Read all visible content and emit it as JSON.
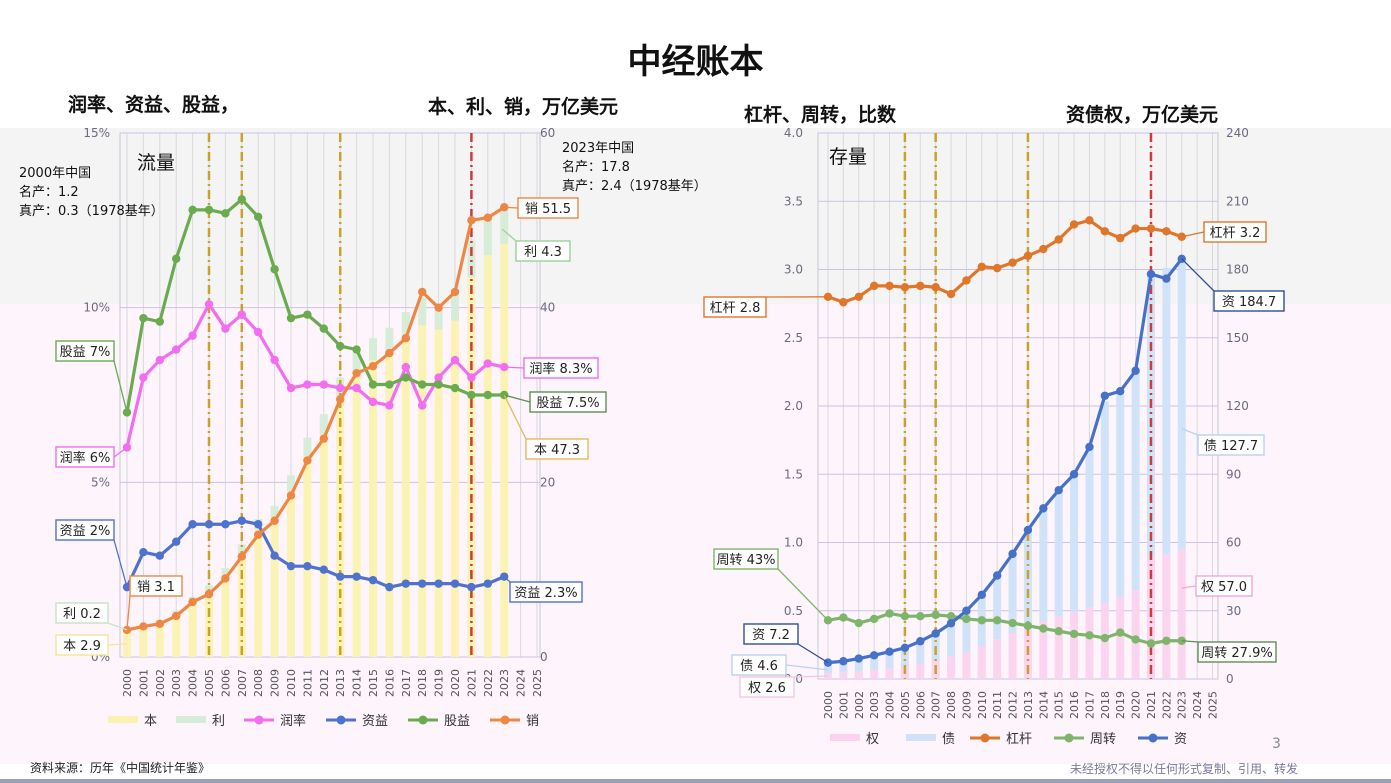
{
  "title": "中经账本",
  "headers": {
    "left_a": "润率、资益、股益，",
    "left_b": "本、利、销，万亿美元",
    "right_a": "杠杆、周转，比数",
    "right_b": "资债权，万亿美元"
  },
  "panel_labels": {
    "left": "流量",
    "right": "存量"
  },
  "notes": {
    "n2000": [
      "2000年中国",
      "名产：1.2",
      "真产：0.3（1978基年）"
    ],
    "n2023": [
      "2023年中国",
      "名产：17.8",
      "真产：2.4（1978基年）"
    ]
  },
  "source": "资料来源：历年《中国统计年鉴》",
  "copyright": "未经授权不得以任何形式复制、引用、转发",
  "page_number": "3",
  "colors": {
    "ben": "#fbf2b0",
    "li": "#d6ecd6",
    "runlv": "#f26df0",
    "ziyi": "#4f72cf",
    "guyi": "#6aab4f",
    "xiao": "#ee8644",
    "quan": "#fbd3ee",
    "zhai": "#cfe2f8",
    "ganggan": "#e0762c",
    "zhouzhuan": "#7eb56a",
    "zi": "#4571c8",
    "vline_gold": "#c9a227",
    "vline_red": "#cf3b3b"
  },
  "chart_data": [
    {
      "type": "bar",
      "title": "流量",
      "x": [
        "2000",
        "2001",
        "2002",
        "2003",
        "2004",
        "2005",
        "2006",
        "2007",
        "2008",
        "2009",
        "2010",
        "2011",
        "2012",
        "2013",
        "2014",
        "2015",
        "2016",
        "2017",
        "2018",
        "2019",
        "2020",
        "2021",
        "2022",
        "2023",
        "2024",
        "2025"
      ],
      "left_axis": {
        "ticks": [
          "0%",
          "5%",
          "10%",
          "15%"
        ],
        "ylim": [
          0,
          15
        ]
      },
      "right_axis": {
        "ticks": [
          "0",
          "20",
          "40",
          "60"
        ],
        "ylim": [
          0,
          60
        ]
      },
      "series": [
        {
          "name": "本",
          "kind": "bar",
          "axis": "right",
          "values": [
            2.9,
            3.3,
            3.9,
            4.9,
            6.4,
            7.6,
            9.4,
            11.8,
            14.6,
            16.0,
            19.0,
            23.0,
            25.5,
            29.5,
            32.5,
            34.0,
            35.0,
            36.5,
            38.0,
            37.5,
            38.5,
            43.5,
            46.0,
            47.3,
            null,
            null
          ]
        },
        {
          "name": "利",
          "kind": "bar",
          "axis": "right",
          "values": [
            0.2,
            0.2,
            0.3,
            0.4,
            0.5,
            0.6,
            0.8,
            1.1,
            1.2,
            1.3,
            1.8,
            2.1,
            2.3,
            2.5,
            2.5,
            2.5,
            2.7,
            3.0,
            3.1,
            2.9,
            3.0,
            4.2,
            4.4,
            4.3,
            null,
            null
          ]
        },
        {
          "name": "润率",
          "kind": "line",
          "axis": "left",
          "values": [
            6.0,
            8.0,
            8.5,
            8.8,
            9.2,
            10.1,
            9.4,
            9.8,
            9.3,
            8.5,
            7.7,
            7.8,
            7.8,
            7.7,
            7.7,
            7.3,
            7.2,
            8.3,
            7.2,
            8.0,
            8.5,
            8.0,
            8.4,
            8.3,
            null,
            null
          ]
        },
        {
          "name": "资益",
          "kind": "line",
          "axis": "left",
          "values": [
            2.0,
            3.0,
            2.9,
            3.3,
            3.8,
            3.8,
            3.8,
            3.9,
            3.8,
            2.9,
            2.6,
            2.6,
            2.5,
            2.3,
            2.3,
            2.2,
            2.0,
            2.1,
            2.1,
            2.1,
            2.1,
            2.0,
            2.1,
            2.3,
            null,
            null
          ]
        },
        {
          "name": "股益",
          "kind": "line",
          "axis": "left",
          "values": [
            7.0,
            9.7,
            9.6,
            11.4,
            12.8,
            12.8,
            12.7,
            13.1,
            12.6,
            11.1,
            9.7,
            9.8,
            9.4,
            8.9,
            8.8,
            7.8,
            7.8,
            8.0,
            7.8,
            7.8,
            7.7,
            7.5,
            7.5,
            7.5,
            null,
            null
          ]
        },
        {
          "name": "销",
          "kind": "line",
          "axis": "right",
          "values": [
            3.1,
            3.5,
            3.8,
            4.7,
            6.3,
            7.2,
            9.0,
            11.5,
            14.0,
            15.6,
            18.5,
            22.5,
            25.0,
            29.5,
            32.5,
            33.3,
            34.8,
            36.5,
            41.8,
            40.0,
            41.8,
            50.0,
            50.3,
            51.5,
            null,
            null
          ]
        }
      ],
      "annotations": [
        "2000年 股益 7%",
        "2000年 润率 6%",
        "2000年 资益 2%",
        "2000年 销 3.1",
        "2000年 利 0.2",
        "2000年 本 2.9",
        "2023年 销 51.5",
        "2023年 利 4.3",
        "2023年 润率 8.3%",
        "2023年 股益 7.5%",
        "2023年 本 47.3",
        "2023年 资益 2.3%"
      ],
      "vlines": {
        "gold": [
          "2005",
          "2007",
          "2013"
        ],
        "red": [
          "2021"
        ]
      },
      "legend": [
        "本",
        "利",
        "润率",
        "资益",
        "股益",
        "销"
      ],
      "legend_position": "bottom"
    },
    {
      "type": "bar",
      "title": "存量",
      "x": [
        "2000",
        "2001",
        "2002",
        "2003",
        "2004",
        "2005",
        "2006",
        "2007",
        "2008",
        "2009",
        "2010",
        "2011",
        "2012",
        "2013",
        "2014",
        "2015",
        "2016",
        "2017",
        "2018",
        "2019",
        "2020",
        "2021",
        "2022",
        "2023",
        "2024",
        "2025"
      ],
      "left_axis": {
        "ticks": [
          "0.0",
          "0.5",
          "1.0",
          "1.5",
          "2.0",
          "2.5",
          "3.0",
          "3.5",
          "4.0"
        ],
        "ylim": [
          0,
          4
        ]
      },
      "right_axis": {
        "ticks": [
          "0",
          "30",
          "60",
          "90",
          "120",
          "150",
          "180",
          "210",
          "240"
        ],
        "ylim": [
          0,
          240
        ]
      },
      "series": [
        {
          "name": "权",
          "kind": "bar",
          "axis": "right",
          "values": [
            2.6,
            3.0,
            3.5,
            4.1,
            4.7,
            5.5,
            6.8,
            8.2,
            10.0,
            12.0,
            14.5,
            17.5,
            20.0,
            23.0,
            25.5,
            27.5,
            29.5,
            31.5,
            33.5,
            36.0,
            39.0,
            53.0,
            55.0,
            57.0,
            null,
            null
          ]
        },
        {
          "name": "债",
          "kind": "bar",
          "axis": "right",
          "values": [
            4.6,
            5.0,
            5.5,
            6.3,
            7.1,
            8.2,
            9.8,
            11.8,
            14.5,
            18.0,
            22.5,
            28.0,
            35.0,
            42.5,
            49.5,
            55.5,
            60.5,
            70.5,
            88.5,
            90.0,
            96.5,
            125.0,
            125.7,
            127.7,
            null,
            null
          ]
        },
        {
          "name": "杠杆",
          "kind": "line",
          "axis": "left",
          "values": [
            2.8,
            2.76,
            2.8,
            2.88,
            2.88,
            2.87,
            2.88,
            2.87,
            2.82,
            2.92,
            3.02,
            3.01,
            3.05,
            3.1,
            3.15,
            3.22,
            3.33,
            3.36,
            3.28,
            3.23,
            3.3,
            3.3,
            3.28,
            3.24,
            null,
            null
          ]
        },
        {
          "name": "周转",
          "kind": "line",
          "axis": "left",
          "values": [
            0.43,
            0.45,
            0.41,
            0.44,
            0.48,
            0.46,
            0.46,
            0.47,
            0.46,
            0.44,
            0.43,
            0.43,
            0.41,
            0.39,
            0.37,
            0.35,
            0.33,
            0.32,
            0.3,
            0.34,
            0.29,
            0.26,
            0.28,
            0.28,
            null,
            null
          ]
        },
        {
          "name": "资",
          "kind": "line",
          "axis": "right",
          "values": [
            7.2,
            7.8,
            9.0,
            10.4,
            12.0,
            13.7,
            16.6,
            20.0,
            24.5,
            30.0,
            37.0,
            45.5,
            55.0,
            65.5,
            75.0,
            83.0,
            90.0,
            102.0,
            124.5,
            126.5,
            135.5,
            178.0,
            176.0,
            184.7,
            null,
            null
          ]
        }
      ],
      "annotations": [
        "2000年 杠杆 2.8",
        "2000年 周转 43%",
        "2000年 资 7.2",
        "2000年 债 4.6",
        "2000年 权 2.6",
        "2023年 杠杆 3.2",
        "2023年 资 184.7",
        "2023年 债 127.7",
        "2023年 权 57.0",
        "2023年 周转 27.9%"
      ],
      "vlines": {
        "gold": [
          "2005",
          "2007",
          "2013"
        ],
        "red": [
          "2021"
        ]
      },
      "legend": [
        "权",
        "债",
        "杠杆",
        "周转",
        "资"
      ],
      "legend_position": "bottom"
    }
  ],
  "callouts": {
    "left": [
      {
        "text": "股益 7%",
        "color": "#6aab4f"
      },
      {
        "text": "润率 6%",
        "color": "#f26df0"
      },
      {
        "text": "资益 2%",
        "color": "#4f72cf"
      },
      {
        "text": "销 3.1",
        "color": "#ee8644"
      },
      {
        "text": "利 0.2",
        "color": "#c8e2c8"
      },
      {
        "text": "本 2.9",
        "color": "#f3e59a"
      },
      {
        "text": "销 51.5",
        "color": "#ee8644"
      },
      {
        "text": "利 4.3",
        "color": "#9cd09c"
      },
      {
        "text": "润率 8.3%",
        "color": "#f26df0"
      },
      {
        "text": "股益 7.5%",
        "color": "#5f8f55"
      },
      {
        "text": "本 47.3",
        "color": "#e5b85a"
      },
      {
        "text": "资益 2.3%",
        "color": "#4f72cf"
      }
    ],
    "right": [
      {
        "text": "杠杆 2.8",
        "color": "#e0762c"
      },
      {
        "text": "周转 43%",
        "color": "#7eb56a"
      },
      {
        "text": "资 7.2",
        "color": "#2f4f9a"
      },
      {
        "text": "债 4.6",
        "color": "#b9d3f0"
      },
      {
        "text": "权 2.6",
        "color": "#f5c6e6"
      },
      {
        "text": "杠杆 3.2",
        "color": "#e0762c"
      },
      {
        "text": "资 184.7",
        "color": "#2f4f9a"
      },
      {
        "text": "债 127.7",
        "color": "#b9d3f0"
      },
      {
        "text": "权 57.0",
        "color": "#f0a9d8"
      },
      {
        "text": "周转 27.9%",
        "color": "#5f8f55"
      }
    ]
  }
}
